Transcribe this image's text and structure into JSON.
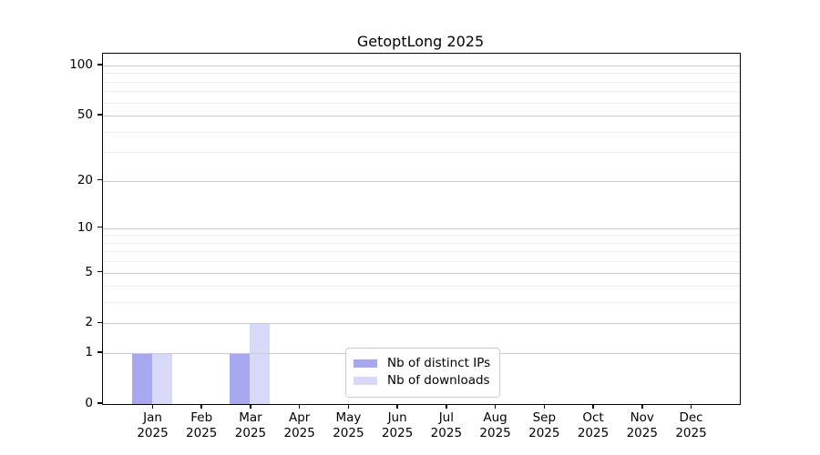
{
  "chart_data": {
    "type": "bar",
    "title": "GetoptLong 2025",
    "categories": [
      "Jan",
      "Feb",
      "Mar",
      "Apr",
      "May",
      "Jun",
      "Jul",
      "Aug",
      "Sep",
      "Oct",
      "Nov",
      "Dec"
    ],
    "x_tick_year": "2025",
    "series": [
      {
        "name": "Nb of distinct IPs",
        "color": "#a8a8f0",
        "values": [
          1,
          0,
          1,
          0,
          0,
          0,
          0,
          0,
          0,
          0,
          0,
          0
        ]
      },
      {
        "name": "Nb of downloads",
        "color": "#d8d8f8",
        "values": [
          1,
          0,
          2,
          0,
          0,
          0,
          0,
          0,
          0,
          0,
          0,
          0
        ]
      }
    ],
    "y_scale": "log10(1+y)",
    "y_ticks": [
      0,
      1,
      2,
      5,
      10,
      20,
      50,
      100
    ],
    "y_minor_gridlines": [
      3,
      4,
      6,
      7,
      8,
      9,
      30,
      40,
      60,
      70,
      80,
      90
    ],
    "ylim": [
      0,
      118
    ],
    "grid": "horizontal",
    "legend_position": "bottom-center",
    "bar_orientation": "vertical"
  },
  "colors": {
    "background": "#ffffff",
    "axis": "#000000",
    "grid_major": "#c9c9c9",
    "grid_minor": "#ececec",
    "legend_border": "#cccccc"
  }
}
